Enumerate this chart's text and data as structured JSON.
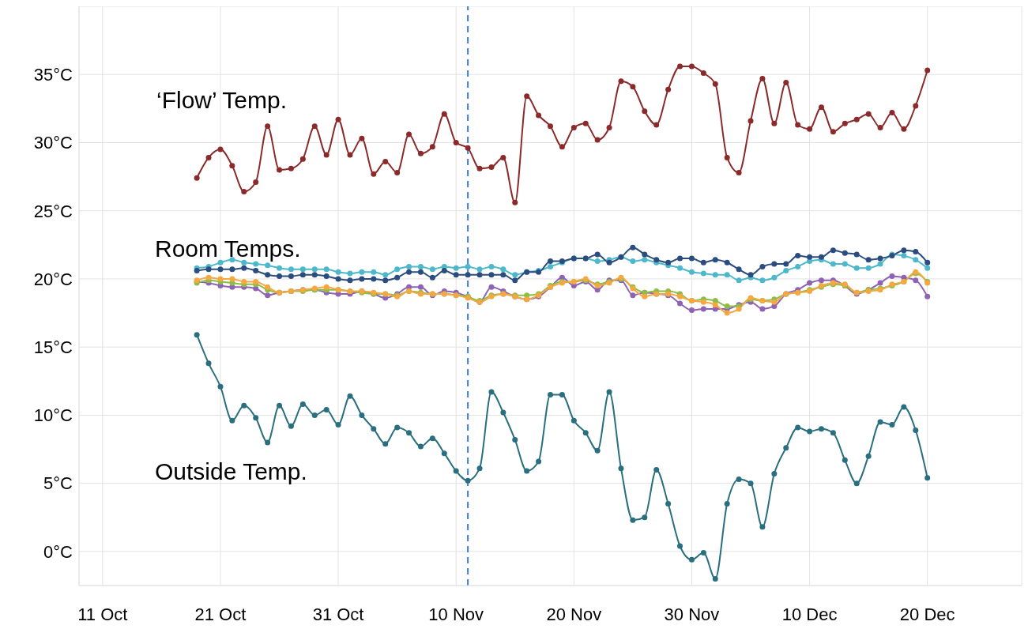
{
  "chart_data": {
    "type": "line",
    "annotations": [
      "‘Flow’ Temp.",
      "Room Temps.",
      "Outside Temp."
    ],
    "x": [
      "--10-19",
      "--10-20",
      "--10-21",
      "--10-22",
      "--10-23",
      "--10-24",
      "--10-25",
      "--10-26",
      "--10-27",
      "--10-28",
      "--10-29",
      "--10-30",
      "--10-31",
      "--11-01",
      "--11-02",
      "--11-03",
      "--11-04",
      "--11-05",
      "--11-06",
      "--11-07",
      "--11-08",
      "--11-09",
      "--11-10",
      "--11-11",
      "--11-12",
      "--11-13",
      "--11-14",
      "--11-15",
      "--11-16",
      "--11-17",
      "--11-18",
      "--11-19",
      "--11-20",
      "--11-21",
      "--11-22",
      "--11-23",
      "--11-24",
      "--11-25",
      "--11-26",
      "--11-27",
      "--11-28",
      "--11-29",
      "--11-30",
      "--12-01",
      "--12-02",
      "--12-03",
      "--12-04",
      "--12-05",
      "--12-06",
      "--12-07",
      "--12-08",
      "--12-09",
      "--12-10",
      "--12-11",
      "--12-12",
      "--12-13",
      "--12-14",
      "--12-15",
      "--12-16",
      "--12-17",
      "--12-18",
      "--12-19",
      "--12-20"
    ],
    "series": [
      {
        "color": "#8b2a2a",
        "values": [
          27.4,
          28.9,
          29.5,
          28.3,
          26.4,
          27.1,
          31.2,
          28.0,
          28.1,
          28.8,
          31.2,
          29.1,
          31.7,
          29.1,
          30.3,
          27.7,
          28.6,
          27.8,
          30.6,
          29.2,
          29.7,
          32.1,
          30.0,
          29.6,
          28.1,
          28.2,
          28.9,
          25.6,
          33.4,
          32.0,
          31.2,
          29.7,
          31.1,
          31.4,
          30.2,
          31.1,
          34.5,
          34.1,
          32.3,
          31.3,
          33.9,
          35.6,
          35.6,
          35.1,
          34.3,
          28.9,
          27.8,
          31.6,
          34.7,
          31.4,
          34.4,
          31.3,
          31.0,
          32.6,
          30.8,
          31.4,
          31.7,
          32.1,
          31.1,
          32.2,
          31.0,
          32.7,
          35.3
        ]
      },
      {
        "color": "#4db8cc",
        "values": [
          20.8,
          20.9,
          21.2,
          21.4,
          21.2,
          21.1,
          21.0,
          20.8,
          20.7,
          20.7,
          20.7,
          20.7,
          20.5,
          20.4,
          20.5,
          20.5,
          20.3,
          20.7,
          20.9,
          20.9,
          20.7,
          20.9,
          20.8,
          20.9,
          20.7,
          20.9,
          20.7,
          20.3,
          20.5,
          20.6,
          20.9,
          21.2,
          21.5,
          21.5,
          21.3,
          21.4,
          21.6,
          21.3,
          21.4,
          21.2,
          21.0,
          20.8,
          20.5,
          20.4,
          20.3,
          20.3,
          19.9,
          20.1,
          19.9,
          20.1,
          20.6,
          20.9,
          21.3,
          21.4,
          21.1,
          21.1,
          20.8,
          20.8,
          21.1,
          21.8,
          21.7,
          21.4,
          20.8
        ]
      },
      {
        "color": "#2b4c7e",
        "values": [
          20.6,
          20.7,
          20.7,
          20.7,
          20.8,
          20.6,
          20.3,
          20.2,
          20.2,
          20.3,
          20.3,
          20.2,
          20.0,
          19.9,
          20.0,
          20.0,
          19.9,
          20.1,
          20.5,
          20.5,
          20.1,
          20.6,
          20.3,
          20.3,
          20.3,
          20.3,
          20.3,
          19.9,
          20.5,
          20.5,
          21.3,
          21.3,
          21.5,
          21.5,
          21.8,
          21.2,
          21.6,
          22.3,
          21.8,
          21.4,
          21.2,
          21.5,
          21.5,
          21.2,
          21.4,
          21.2,
          20.7,
          20.3,
          20.9,
          21.1,
          21.1,
          21.7,
          21.6,
          21.6,
          22.1,
          21.9,
          21.8,
          21.4,
          21.5,
          21.7,
          22.1,
          22.0,
          21.2
        ]
      },
      {
        "color": "#8e63b5",
        "values": [
          19.8,
          19.7,
          19.5,
          19.4,
          19.4,
          19.3,
          18.8,
          19.0,
          19.1,
          19.2,
          19.2,
          19.0,
          18.9,
          18.9,
          19.1,
          18.9,
          18.6,
          18.9,
          19.4,
          19.4,
          18.8,
          19.1,
          19.0,
          18.7,
          18.3,
          19.4,
          19.1,
          18.7,
          18.5,
          18.7,
          19.4,
          20.1,
          19.5,
          19.8,
          19.2,
          19.9,
          19.9,
          18.8,
          19.0,
          18.9,
          18.8,
          18.2,
          17.7,
          17.8,
          17.8,
          17.8,
          18.1,
          18.3,
          17.8,
          18.0,
          18.9,
          19.2,
          19.7,
          19.9,
          19.9,
          19.5,
          18.9,
          19.2,
          19.7,
          20.2,
          20.1,
          19.9,
          18.7
        ]
      },
      {
        "color": "#8dbd45",
        "values": [
          19.7,
          19.9,
          19.8,
          19.7,
          19.6,
          19.6,
          19.2,
          19.0,
          19.1,
          19.1,
          19.2,
          19.2,
          19.2,
          19.1,
          19.0,
          18.9,
          18.9,
          18.8,
          19.1,
          19.0,
          18.9,
          18.9,
          18.8,
          18.7,
          18.4,
          18.8,
          18.9,
          18.8,
          18.8,
          18.9,
          19.5,
          19.8,
          19.8,
          19.9,
          19.6,
          19.8,
          20.0,
          19.4,
          19.0,
          19.1,
          19.1,
          18.9,
          18.4,
          18.5,
          18.4,
          18.0,
          18.0,
          18.5,
          18.4,
          18.5,
          18.9,
          19.0,
          19.2,
          19.4,
          19.6,
          19.5,
          19.0,
          19.2,
          19.3,
          19.5,
          19.8,
          20.4,
          19.8
        ]
      },
      {
        "color": "#f5a742",
        "values": [
          19.9,
          20.1,
          20.0,
          20.0,
          19.8,
          19.8,
          19.4,
          19.0,
          19.1,
          19.2,
          19.3,
          19.4,
          19.2,
          19.1,
          19.1,
          19.0,
          18.9,
          18.7,
          19.1,
          18.9,
          18.9,
          18.9,
          18.8,
          18.6,
          18.3,
          18.7,
          18.9,
          18.7,
          18.5,
          18.8,
          19.4,
          19.7,
          19.8,
          20.0,
          19.5,
          19.7,
          20.1,
          19.3,
          18.7,
          18.9,
          18.9,
          18.7,
          18.4,
          18.3,
          18.1,
          17.5,
          17.8,
          18.6,
          18.4,
          18.3,
          18.9,
          19.0,
          19.1,
          19.5,
          19.7,
          19.6,
          19.0,
          19.1,
          19.2,
          19.6,
          19.8,
          20.5,
          19.7
        ]
      },
      {
        "color": "#2a6f7f",
        "values": [
          15.9,
          13.8,
          12.1,
          9.6,
          10.7,
          9.8,
          8.0,
          10.7,
          9.2,
          10.8,
          10.0,
          10.4,
          9.3,
          11.4,
          10.0,
          9.0,
          7.9,
          9.1,
          8.7,
          7.7,
          8.3,
          7.2,
          5.9,
          5.2,
          6.1,
          11.7,
          10.2,
          8.2,
          5.9,
          6.6,
          11.5,
          11.5,
          9.6,
          8.7,
          7.4,
          11.7,
          6.1,
          2.3,
          2.5,
          6.0,
          3.5,
          0.4,
          -0.6,
          -0.1,
          -2.0,
          3.5,
          5.3,
          5.0,
          1.8,
          5.7,
          7.6,
          9.1,
          8.8,
          9.0,
          8.7,
          6.7,
          5.0,
          7.0,
          9.5,
          9.3,
          10.6,
          8.9,
          5.4
        ]
      }
    ],
    "xlim": [
      "--10-09",
      "--12-28"
    ],
    "xticks": [
      {
        "value": "--10-11",
        "label": "11 Oct"
      },
      {
        "value": "--10-21",
        "label": "21 Oct"
      },
      {
        "value": "--10-31",
        "label": "31 Oct"
      },
      {
        "value": "--11-10",
        "label": "10 Nov"
      },
      {
        "value": "--11-20",
        "label": "20 Nov"
      },
      {
        "value": "--11-30",
        "label": "30 Nov"
      },
      {
        "value": "--12-10",
        "label": "10 Dec"
      },
      {
        "value": "--12-20",
        "label": "20 Dec"
      }
    ],
    "ylim": [
      -2.5,
      40
    ],
    "yticks": [
      {
        "value": 0,
        "label": "0°C"
      },
      {
        "value": 5,
        "label": "5°C"
      },
      {
        "value": 10,
        "label": "10°C"
      },
      {
        "value": 15,
        "label": "15°C"
      },
      {
        "value": 20,
        "label": "20°C"
      },
      {
        "value": 25,
        "label": "25°C"
      },
      {
        "value": 30,
        "label": "30°C"
      },
      {
        "value": 35,
        "label": "35°C"
      }
    ],
    "ref_lines": [
      {
        "axis": "x",
        "value": "--11-11",
        "color": "#3b7ddd",
        "line_style": "dashed"
      }
    ],
    "grid": true,
    "marker": "circle",
    "line_style": "solid"
  }
}
